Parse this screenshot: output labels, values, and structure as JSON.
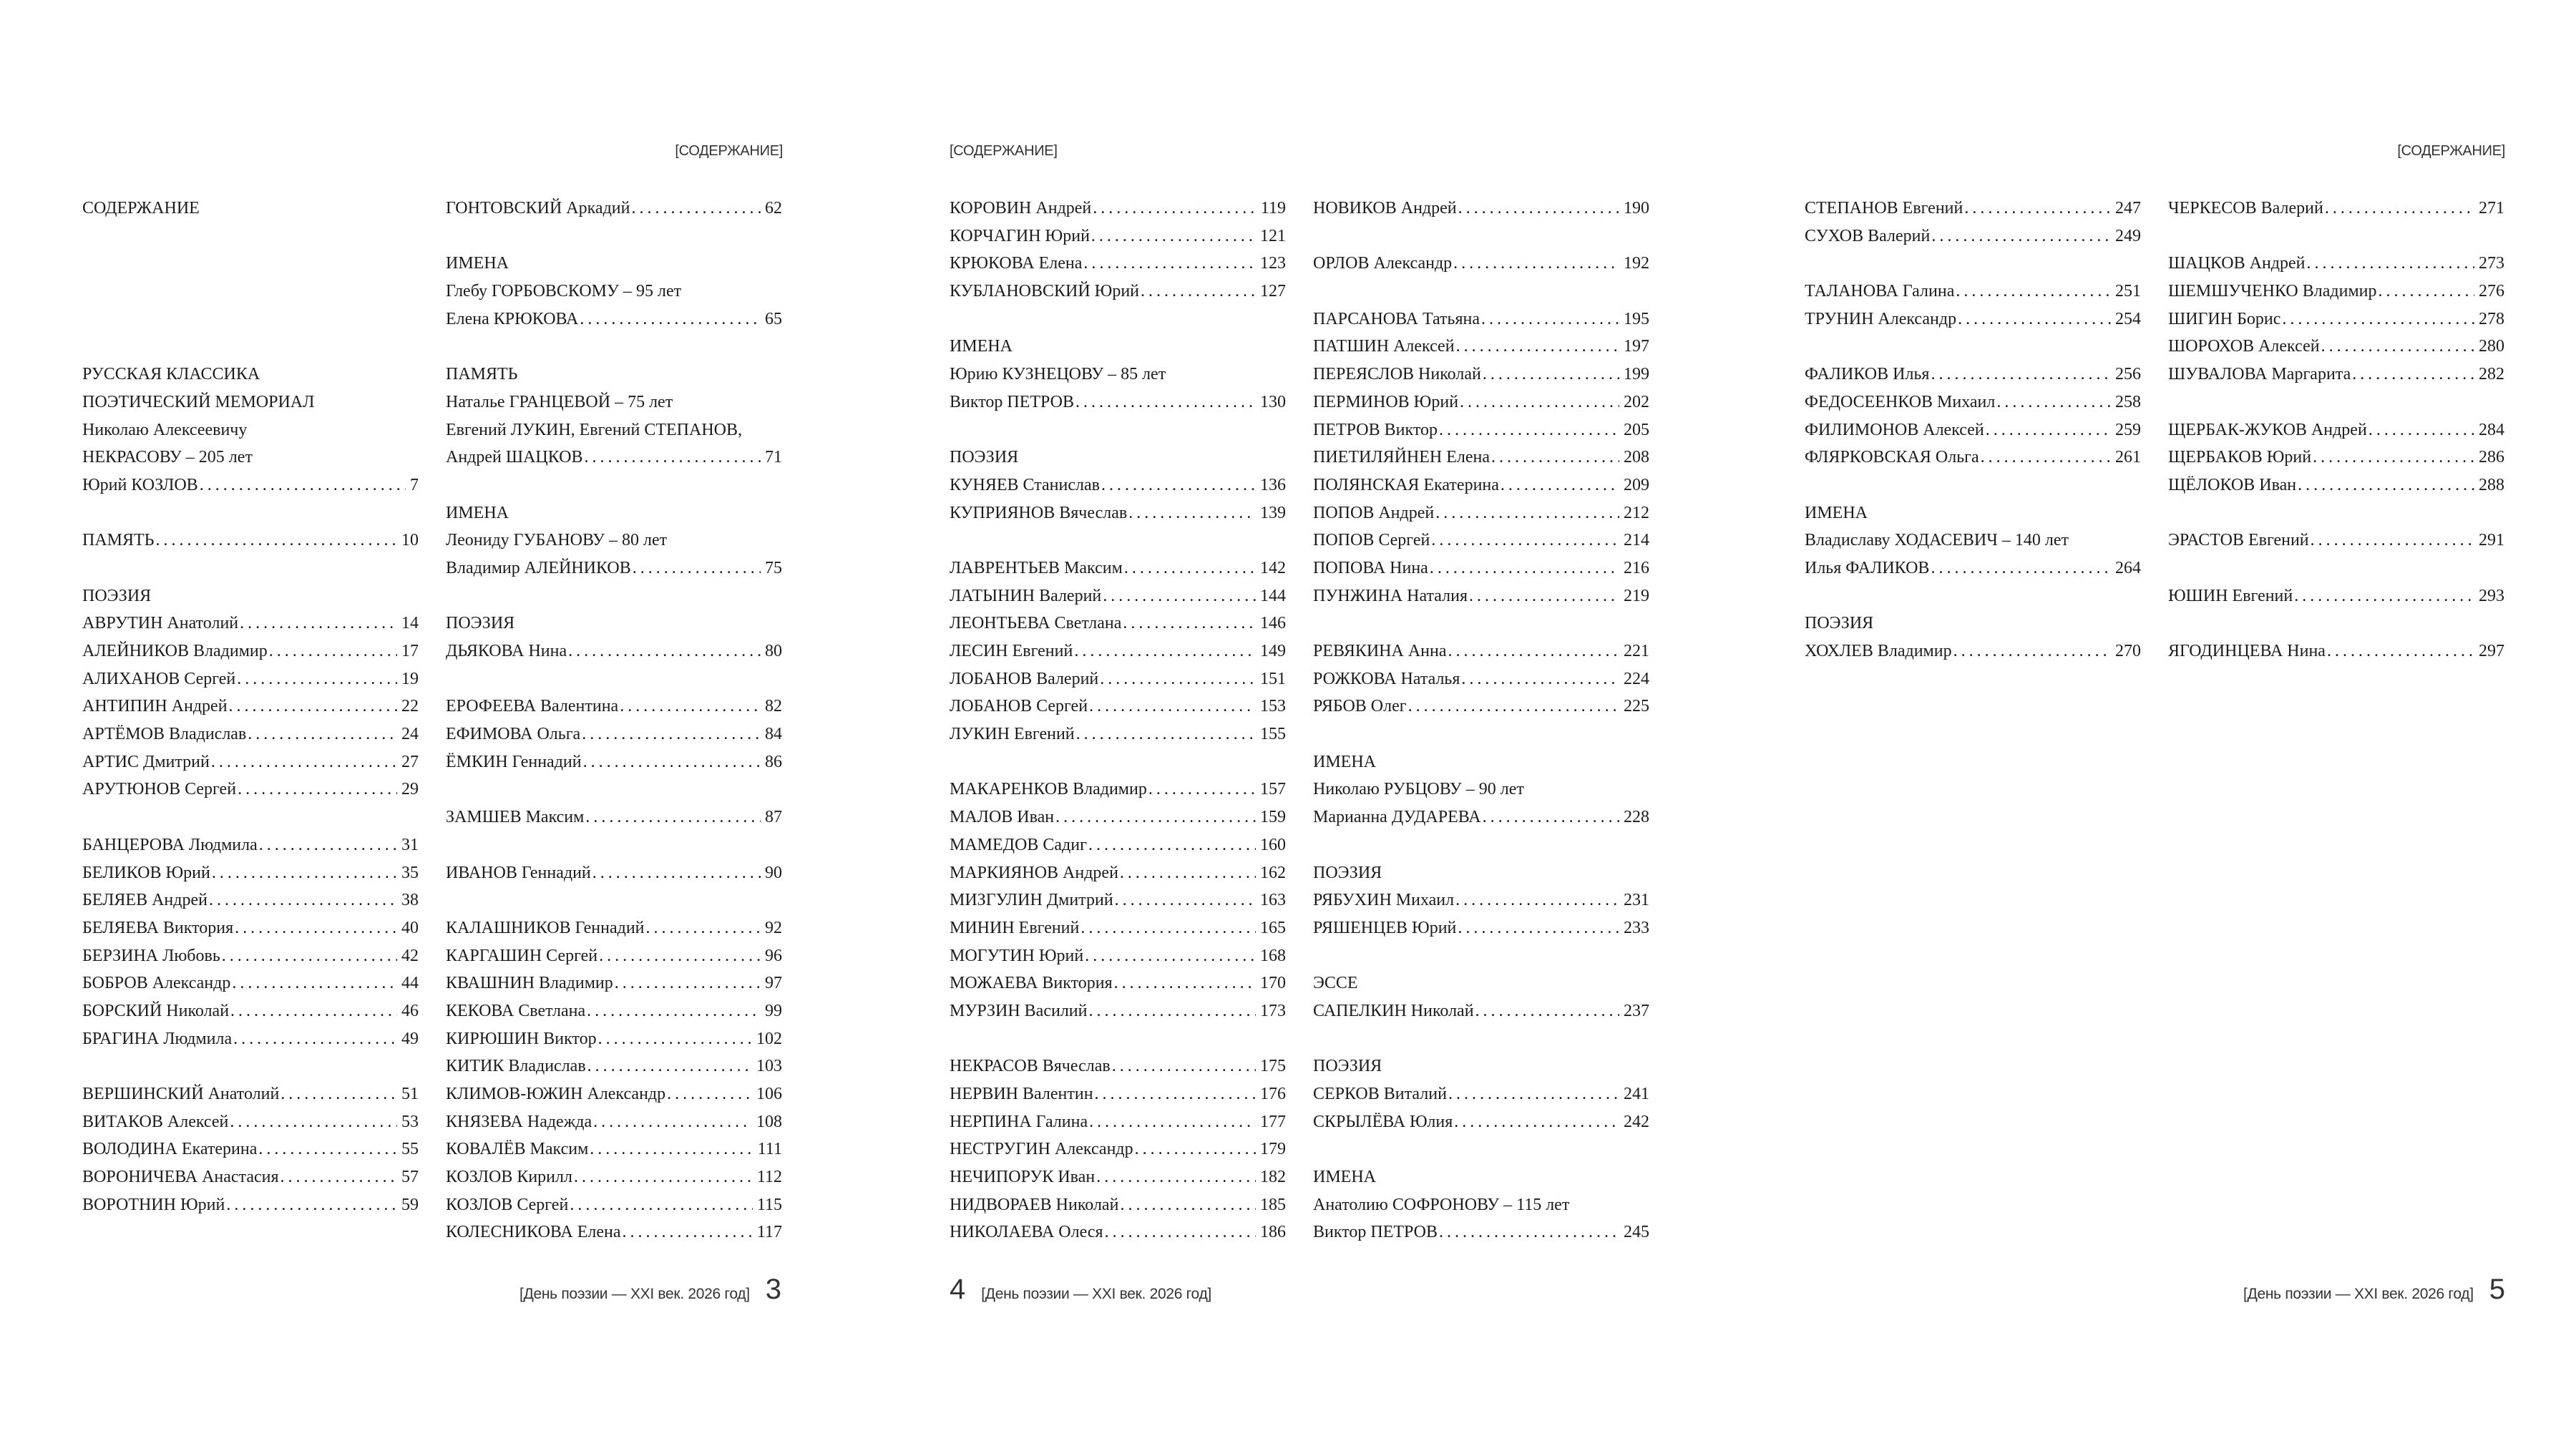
{
  "running_head": "[СОДЕРЖАНИЕ]",
  "footer_text": "[День поэзии — XXI век. 2026 год]",
  "page_numbers": [
    "3",
    "4",
    "5"
  ],
  "columns": [
    [
      {
        "text": "СОДЕРЖАНИЕ"
      },
      {},
      {},
      {},
      {},
      {},
      {
        "text": "РУССКАЯ КЛАССИКА"
      },
      {
        "text": "ПОЭТИЧЕСКИЙ МЕМОРИАЛ"
      },
      {
        "text": "Николаю Алексеевичу"
      },
      {
        "text": "НЕКРАСОВУ – 205 лет"
      },
      {
        "name": "Юрий КОЗЛОВ",
        "page": "7"
      },
      {},
      {
        "name": "ПАМЯТЬ",
        "page": "10"
      },
      {},
      {
        "text": "ПОЭЗИЯ"
      },
      {
        "name": "АВРУТИН Анатолий",
        "page": "14"
      },
      {
        "name": "АЛЕЙНИКОВ Владимир",
        "page": "17"
      },
      {
        "name": "АЛИХАНОВ Сергей",
        "page": "19"
      },
      {
        "name": "АНТИПИН Андрей",
        "page": "22"
      },
      {
        "name": "АРТЁМОВ Владислав",
        "page": "24"
      },
      {
        "name": "АРТИС Дмитрий",
        "page": "27"
      },
      {
        "name": "АРУТЮНОВ Сергей",
        "page": "29"
      },
      {},
      {
        "name": "БАНЦЕРОВА Людмила",
        "page": "31"
      },
      {
        "name": "БЕЛИКОВ Юрий",
        "page": "35"
      },
      {
        "name": "БЕЛЯЕВ Андрей",
        "page": "38"
      },
      {
        "name": "БЕЛЯЕВА Виктория",
        "page": "40"
      },
      {
        "name": "БЕРЗИНА Любовь",
        "page": "42"
      },
      {
        "name": "БОБРОВ Александр",
        "page": "44"
      },
      {
        "name": "БОРСКИЙ Николай",
        "page": "46"
      },
      {
        "name": "БРАГИНА Людмила",
        "page": "49"
      },
      {},
      {
        "name": "ВЕРШИНСКИЙ Анатолий",
        "page": "51"
      },
      {
        "name": "ВИТАКОВ Алексей",
        "page": "53"
      },
      {
        "name": "ВОЛОДИНА Екатерина",
        "page": "55"
      },
      {
        "name": "ВОРОНИЧЕВА Анастасия",
        "page": "57"
      },
      {
        "name": "ВОРОТНИН Юрий",
        "page": "59"
      }
    ],
    [
      {
        "name": "ГОНТОВСКИЙ Аркадий",
        "page": "62"
      },
      {},
      {
        "text": "ИМЕНА"
      },
      {
        "text": "Глебу ГОРБОВСКОМУ – 95 лет"
      },
      {
        "name": "Елена КРЮКОВА",
        "page": "65"
      },
      {},
      {
        "text": "ПАМЯТЬ"
      },
      {
        "text": "Наталье ГРАНЦЕВОЙ – 75 лет"
      },
      {
        "text": "Евгений ЛУКИН, Евгений СТЕПАНОВ,"
      },
      {
        "name": "Андрей ШАЦКОВ",
        "page": "71"
      },
      {},
      {
        "text": "ИМЕНА"
      },
      {
        "text": "Леониду ГУБАНОВУ – 80 лет"
      },
      {
        "name": "Владимир АЛЕЙНИКОВ",
        "page": "75"
      },
      {},
      {
        "text": "ПОЭЗИЯ"
      },
      {
        "name": "ДЬЯКОВА Нина",
        "page": "80"
      },
      {},
      {
        "name": "ЕРОФЕЕВА Валентина",
        "page": "82"
      },
      {
        "name": "ЕФИМОВА Ольга",
        "page": "84"
      },
      {
        "name": "ЁМКИН Геннадий",
        "page": "86"
      },
      {},
      {
        "name": "ЗАМШЕВ Максим",
        "page": "87"
      },
      {},
      {
        "name": "ИВАНОВ Геннадий",
        "page": "90"
      },
      {},
      {
        "name": "КАЛАШНИКОВ Геннадий",
        "page": "92"
      },
      {
        "name": "КАРГАШИН Сергей",
        "page": "96"
      },
      {
        "name": "КВАШНИН Владимир",
        "page": "97"
      },
      {
        "name": "КЕКОВА Светлана",
        "page": "99"
      },
      {
        "name": "КИРЮШИН Виктор",
        "page": "102"
      },
      {
        "name": "КИТИК Владислав",
        "page": "103"
      },
      {
        "name": "КЛИМОВ-ЮЖИН Александр",
        "page": "106"
      },
      {
        "name": "КНЯЗЕВА Надежда",
        "page": "108"
      },
      {
        "name": "КОВАЛЁВ Максим",
        "page": "111"
      },
      {
        "name": "КОЗЛОВ Кирилл",
        "page": "112"
      },
      {
        "name": "КОЗЛОВ Сергей",
        "page": "115"
      },
      {
        "name": "КОЛЕСНИКОВА Елена",
        "page": "117"
      }
    ],
    [
      {
        "name": "КОРОВИН Андрей",
        "page": "119"
      },
      {
        "name": "КОРЧАГИН Юрий",
        "page": "121"
      },
      {
        "name": "КРЮКОВА Елена",
        "page": "123"
      },
      {
        "name": "КУБЛАНОВСКИЙ Юрий",
        "page": "127"
      },
      {},
      {
        "text": "ИМЕНА"
      },
      {
        "text": "Юрию КУЗНЕЦОВУ – 85 лет"
      },
      {
        "name": "Виктор ПЕТРОВ",
        "page": "130"
      },
      {},
      {
        "text": "ПОЭЗИЯ"
      },
      {
        "name": "КУНЯЕВ Станислав",
        "page": "136"
      },
      {
        "name": "КУПРИЯНОВ Вячеслав",
        "page": "139"
      },
      {},
      {
        "name": "ЛАВРЕНТЬЕВ Максим",
        "page": "142"
      },
      {
        "name": "ЛАТЫНИН Валерий",
        "page": "144"
      },
      {
        "name": "ЛЕОНТЬЕВА Светлана",
        "page": "146"
      },
      {
        "name": "ЛЕСИН Евгений",
        "page": "149"
      },
      {
        "name": "ЛОБАНОВ Валерий",
        "page": "151"
      },
      {
        "name": "ЛОБАНОВ Сергей",
        "page": "153"
      },
      {
        "name": "ЛУКИН Евгений",
        "page": "155"
      },
      {},
      {
        "name": "МАКАРЕНКОВ Владимир",
        "page": "157"
      },
      {
        "name": "МАЛОВ Иван",
        "page": "159"
      },
      {
        "name": "МАМЕДОВ Садиг",
        "page": "160"
      },
      {
        "name": "МАРКИЯНОВ Андрей",
        "page": "162"
      },
      {
        "name": "МИЗГУЛИН Дмитрий",
        "page": "163"
      },
      {
        "name": "МИНИН Евгений",
        "page": "165"
      },
      {
        "name": "МОГУТИН Юрий",
        "page": "168"
      },
      {
        "name": "МОЖАЕВА Виктория",
        "page": "170"
      },
      {
        "name": "МУРЗИН Василий",
        "page": "173"
      },
      {},
      {
        "name": "НЕКРАСОВ Вячеслав",
        "page": "175"
      },
      {
        "name": "НЕРВИН Валентин",
        "page": "176"
      },
      {
        "name": "НЕРПИНА Галина",
        "page": "177"
      },
      {
        "name": "НЕСТРУГИН Александр",
        "page": "179"
      },
      {
        "name": "НЕЧИПОРУК Иван",
        "page": "182"
      },
      {
        "name": "НИДВОРАЕВ Николай",
        "page": "185"
      },
      {
        "name": "НИКОЛАЕВА Олеся",
        "page": "186"
      }
    ],
    [
      {
        "name": "НОВИКОВ Андрей",
        "page": "190"
      },
      {},
      {
        "name": "ОРЛОВ Александр",
        "page": "192"
      },
      {},
      {
        "name": "ПАРСАНОВА Татьяна",
        "page": "195"
      },
      {
        "name": "ПАТШИН Алексей",
        "page": "197"
      },
      {
        "name": "ПЕРЕЯСЛОВ Николай",
        "page": "199"
      },
      {
        "name": "ПЕРМИНОВ Юрий",
        "page": "202"
      },
      {
        "name": "ПЕТРОВ Виктор",
        "page": "205"
      },
      {
        "name": "ПИЕТИЛЯЙНЕН Елена",
        "page": "208"
      },
      {
        "name": "ПОЛЯНСКАЯ Екатерина",
        "page": "209"
      },
      {
        "name": "ПОПОВ Андрей",
        "page": "212"
      },
      {
        "name": "ПОПОВ Сергей",
        "page": "214"
      },
      {
        "name": "ПОПОВА Нина",
        "page": "216"
      },
      {
        "name": "ПУНЖИНА Наталия",
        "page": "219"
      },
      {},
      {
        "name": "РЕВЯКИНА Анна",
        "page": "221"
      },
      {
        "name": "РОЖКОВА Наталья",
        "page": "224"
      },
      {
        "name": "РЯБОВ Олег",
        "page": "225"
      },
      {},
      {
        "text": "ИМЕНА"
      },
      {
        "text": "Николаю РУБЦОВУ – 90 лет"
      },
      {
        "name": "Марианна ДУДАРЕВА",
        "page": "228"
      },
      {},
      {
        "text": "ПОЭЗИЯ"
      },
      {
        "name": "РЯБУХИН Михаил",
        "page": "231"
      },
      {
        "name": "РЯШЕНЦЕВ Юрий",
        "page": "233"
      },
      {},
      {
        "text": "ЭССЕ"
      },
      {
        "name": "САПЕЛКИН Николай",
        "page": "237"
      },
      {},
      {
        "text": "ПОЭЗИЯ"
      },
      {
        "name": "СЕРКОВ Виталий",
        "page": "241"
      },
      {
        "name": "СКРЫЛЁВА Юлия",
        "page": "242"
      },
      {},
      {
        "text": "ИМЕНА"
      },
      {
        "text": "Анатолию СОФРОНОВУ – 115 лет"
      },
      {
        "name": "Виктор ПЕТРОВ",
        "page": "245"
      }
    ],
    [
      {
        "name": "СТЕПАНОВ Евгений",
        "page": "247"
      },
      {
        "name": "СУХОВ Валерий",
        "page": "249"
      },
      {},
      {
        "name": "ТАЛАНОВА Галина",
        "page": "251"
      },
      {
        "name": "ТРУНИН Александр",
        "page": "254"
      },
      {},
      {
        "name": "ФАЛИКОВ Илья",
        "page": "256"
      },
      {
        "name": "ФЕДОСЕЕНКОВ Михаил",
        "page": "258"
      },
      {
        "name": "ФИЛИМОНОВ Алексей",
        "page": "259"
      },
      {
        "name": "ФЛЯРКОВСКАЯ Ольга",
        "page": "261"
      },
      {},
      {
        "text": "ИМЕНА"
      },
      {
        "text": "Владиславу ХОДАСЕВИЧ – 140 лет"
      },
      {
        "name": "Илья ФАЛИКОВ",
        "page": "264"
      },
      {},
      {
        "text": "ПОЭЗИЯ"
      },
      {
        "name": "ХОХЛЕВ Владимир",
        "page": "270"
      }
    ],
    [
      {
        "name": "ЧЕРКЕСОВ Валерий",
        "page": "271"
      },
      {},
      {
        "name": "ШАЦКОВ Андрей",
        "page": "273"
      },
      {
        "name": "ШЕМШУЧЕНКО Владимир",
        "page": "276"
      },
      {
        "name": "ШИГИН Борис",
        "page": "278"
      },
      {
        "name": "ШОРОХОВ Алексей",
        "page": "280"
      },
      {
        "name": "ШУВАЛОВА Маргарита",
        "page": "282"
      },
      {},
      {
        "name": "ЩЕРБАК-ЖУКОВ Андрей",
        "page": "284"
      },
      {
        "name": "ЩЕРБАКОВ Юрий",
        "page": "286"
      },
      {
        "name": "ЩЁЛОКОВ Иван",
        "page": "288"
      },
      {},
      {
        "name": "ЭРАСТОВ Евгений",
        "page": "291"
      },
      {},
      {
        "name": "ЮШИН Евгений",
        "page": "293"
      },
      {},
      {
        "name": "ЯГОДИНЦЕВА Нина",
        "page": "297"
      }
    ]
  ]
}
